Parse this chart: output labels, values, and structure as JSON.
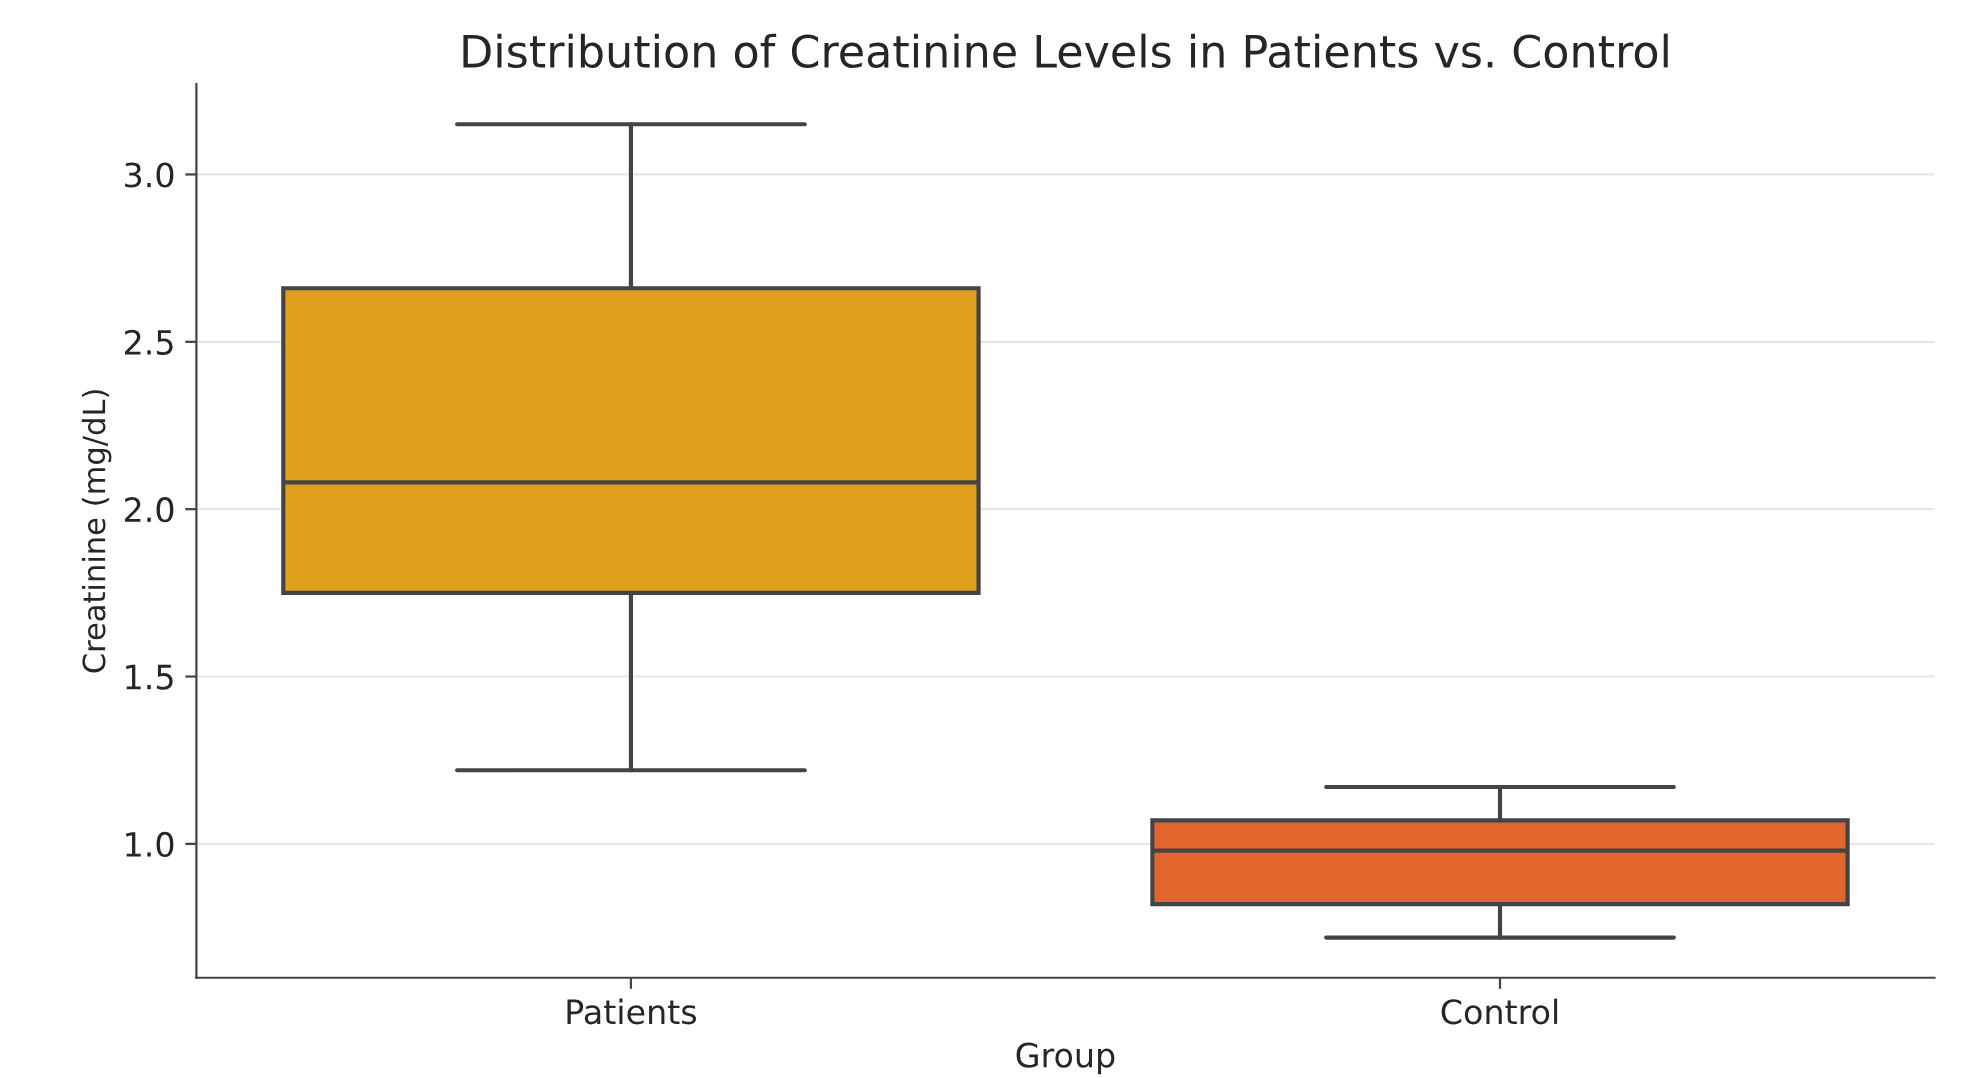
{
  "chart_data": {
    "type": "box",
    "title": "Distribution of Creatinine Levels in Patients vs. Control",
    "xlabel": "Group",
    "ylabel": "Creatinine (mg/dL)",
    "categories": [
      "Patients",
      "Control"
    ],
    "boxes": [
      {
        "low": 1.22,
        "q1": 1.75,
        "median": 2.08,
        "q3": 2.66,
        "high": 3.15
      },
      {
        "low": 0.72,
        "q1": 0.82,
        "median": 0.98,
        "q3": 1.07,
        "high": 1.17
      }
    ],
    "colors": [
      "#dfa020",
      "#e0662e"
    ],
    "ylim": [
      0.6,
      3.27
    ],
    "yticks": [
      {
        "value": 1.0,
        "label": "1.0"
      },
      {
        "value": 1.5,
        "label": "1.5"
      },
      {
        "value": 2.0,
        "label": "2.0"
      },
      {
        "value": 2.5,
        "label": "2.5"
      },
      {
        "value": 3.0,
        "label": "3.0"
      }
    ],
    "grid": "y"
  }
}
